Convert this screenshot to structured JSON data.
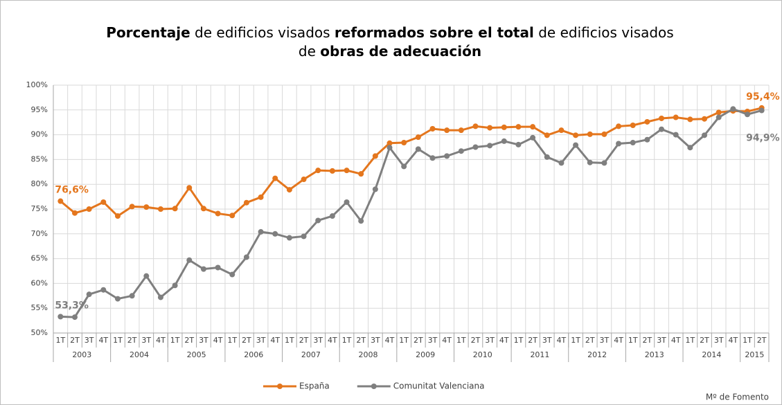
{
  "chart_data": {
    "type": "line",
    "title_lines": [
      [
        {
          "text": "Porcentaje",
          "bold": true
        },
        {
          "text": " de edificios visados ",
          "bold": false
        },
        {
          "text": "reformados sobre el total",
          "bold": true
        },
        {
          "text": " de edificios visados",
          "bold": false
        }
      ],
      [
        {
          "text": "de ",
          "bold": false
        },
        {
          "text": "obras de adecuación",
          "bold": true
        }
      ]
    ],
    "categories": [
      "1T",
      "2T",
      "3T",
      "4T",
      "1T",
      "2T",
      "3T",
      "4T",
      "1T",
      "2T",
      "3T",
      "4T",
      "1T",
      "2T",
      "3T",
      "4T",
      "1T",
      "2T",
      "3T",
      "4T",
      "1T",
      "2T",
      "3T",
      "4T",
      "1T",
      "2T",
      "3T",
      "4T",
      "1T",
      "2T",
      "3T",
      "4T",
      "1T",
      "2T",
      "3T",
      "4T",
      "1T",
      "2T",
      "3T",
      "4T",
      "1T",
      "2T",
      "3T",
      "4T",
      "1T",
      "2T",
      "3T",
      "4T",
      "1T",
      "2T"
    ],
    "years": [
      "2003",
      "2004",
      "2005",
      "2006",
      "2007",
      "2008",
      "2009",
      "2010",
      "2011",
      "2012",
      "2013",
      "2014",
      "2015"
    ],
    "series": [
      {
        "name": "España",
        "color": "#e4761d",
        "values": [
          76.6,
          74.2,
          75.0,
          76.4,
          73.6,
          75.5,
          75.4,
          75.0,
          75.1,
          79.3,
          75.1,
          74.1,
          73.7,
          76.3,
          77.4,
          81.2,
          78.9,
          81.0,
          82.8,
          82.7,
          82.8,
          82.1,
          85.7,
          88.3,
          88.4,
          89.5,
          91.2,
          90.9,
          90.9,
          91.7,
          91.4,
          91.5,
          91.6,
          91.6,
          89.9,
          90.9,
          89.9,
          90.1,
          90.1,
          91.7,
          91.9,
          92.6,
          93.3,
          93.5,
          93.1,
          93.2,
          94.5,
          94.8,
          94.7,
          95.4
        ],
        "value_labels": [
          "76,6%",
          null,
          null,
          null,
          null,
          null,
          null,
          null,
          null,
          null,
          null,
          null,
          null,
          null,
          null,
          null,
          null,
          null,
          null,
          null,
          null,
          null,
          null,
          null,
          null,
          null,
          null,
          null,
          null,
          null,
          null,
          null,
          null,
          null,
          null,
          null,
          null,
          null,
          null,
          null,
          null,
          null,
          null,
          null,
          null,
          null,
          null,
          null,
          null,
          "95,4%"
        ]
      },
      {
        "name": "Comunitat Valenciana",
        "color": "#7f7f7f",
        "values": [
          53.3,
          53.2,
          57.8,
          58.7,
          56.9,
          57.5,
          61.5,
          57.2,
          59.6,
          64.7,
          62.9,
          63.2,
          61.8,
          65.3,
          70.4,
          70.0,
          69.2,
          69.5,
          72.7,
          73.6,
          76.4,
          72.6,
          79.0,
          87.4,
          83.6,
          87.1,
          85.3,
          85.7,
          86.7,
          87.5,
          87.8,
          88.7,
          88.0,
          89.4,
          85.5,
          84.3,
          87.9,
          84.4,
          84.3,
          88.2,
          88.4,
          89.0,
          91.1,
          90.0,
          87.4,
          89.9,
          93.5,
          95.2,
          94.1,
          94.9
        ],
        "value_labels": [
          "53,3%",
          null,
          null,
          null,
          null,
          null,
          null,
          null,
          null,
          null,
          null,
          null,
          null,
          null,
          null,
          null,
          null,
          null,
          null,
          null,
          null,
          null,
          null,
          null,
          null,
          null,
          null,
          null,
          null,
          null,
          null,
          null,
          null,
          null,
          null,
          null,
          null,
          null,
          null,
          null,
          null,
          null,
          null,
          null,
          null,
          null,
          null,
          null,
          null,
          "94,9%"
        ]
      }
    ],
    "ylim": [
      50,
      100
    ],
    "yticks": [
      {
        "value": 50,
        "label": "50%"
      },
      {
        "value": 55,
        "label": "55%"
      },
      {
        "value": 60,
        "label": "60%"
      },
      {
        "value": 65,
        "label": "65%"
      },
      {
        "value": 70,
        "label": "70%"
      },
      {
        "value": 75,
        "label": "75%"
      },
      {
        "value": 80,
        "label": "80%"
      },
      {
        "value": 85,
        "label": "85%"
      },
      {
        "value": 90,
        "label": "90%"
      },
      {
        "value": 95,
        "label": "95%"
      },
      {
        "value": 100,
        "label": "100%"
      }
    ],
    "grid": true,
    "legend": "bottom",
    "source": "Mº de Fomento"
  }
}
